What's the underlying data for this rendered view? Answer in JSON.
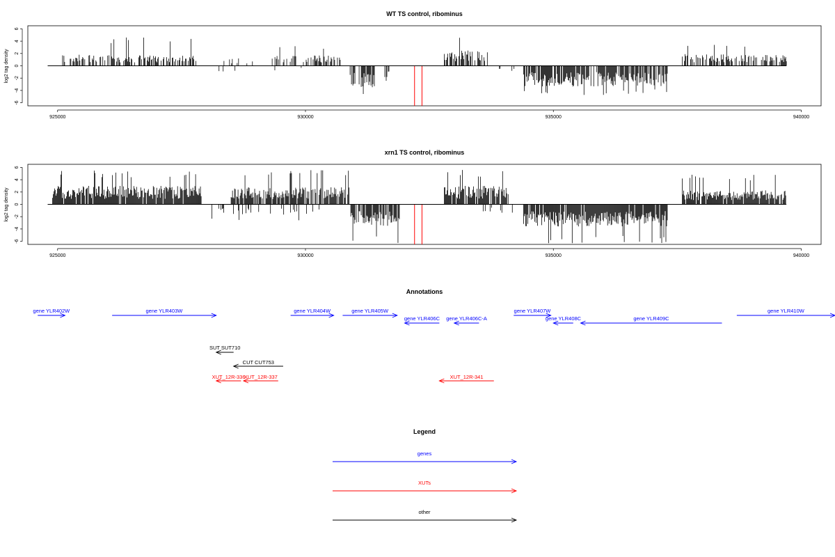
{
  "chart_data": [
    {
      "type": "bar",
      "title": "WT TS control, ribominus",
      "ylabel": "log2 tag density",
      "xlim": [
        924400,
        940400
      ],
      "ylim": [
        -6.5,
        6.5
      ],
      "xticks": [
        925000,
        930000,
        935000,
        940000
      ],
      "yticks": [
        6,
        4,
        2,
        0,
        -2,
        -4,
        -6
      ],
      "baseline_x": [
        924800,
        939700
      ],
      "segments": [
        {
          "x0": 925100,
          "x1": 927800,
          "sign": 1,
          "density": 0.45,
          "amp": 1.8,
          "spike": 4.6
        },
        {
          "x0": 928300,
          "x1": 929000,
          "sign": 1,
          "density": 0.12,
          "amp": 1.2,
          "spike": 2.8
        },
        {
          "x0": 928200,
          "x1": 928600,
          "sign": -1,
          "density": 0.12,
          "amp": 1.2,
          "spike": 2.4
        },
        {
          "x0": 929300,
          "x1": 930700,
          "sign": 1,
          "density": 0.35,
          "amp": 1.7,
          "spike": 3.3
        },
        {
          "x0": 929200,
          "x1": 930000,
          "sign": -1,
          "density": 0.06,
          "amp": 1.0,
          "spike": 2.2
        },
        {
          "x0": 930900,
          "x1": 931400,
          "sign": -1,
          "density": 0.85,
          "amp": 3.6,
          "spike": 5.0
        },
        {
          "x0": 931600,
          "x1": 931700,
          "sign": -1,
          "density": 0.6,
          "amp": 3.0,
          "spike": 3.6
        },
        {
          "x0": 932800,
          "x1": 933700,
          "sign": 1,
          "density": 0.55,
          "amp": 2.5,
          "spike": 4.6
        },
        {
          "x0": 933800,
          "x1": 934300,
          "sign": -1,
          "density": 0.08,
          "amp": 1.2,
          "spike": 2.4
        },
        {
          "x0": 934400,
          "x1": 937300,
          "sign": -1,
          "density": 0.75,
          "amp": 3.4,
          "spike": 4.8
        },
        {
          "x0": 937600,
          "x1": 939700,
          "sign": 1,
          "density": 0.6,
          "amp": 1.9,
          "spike": 3.8
        }
      ],
      "red_lines": [
        {
          "x": 932200,
          "y": -6.5
        },
        {
          "x": 932350,
          "y": -6.5
        }
      ]
    },
    {
      "type": "bar",
      "title": "xrn1 TS control, ribominus",
      "ylabel": "log2 tag density",
      "xlim": [
        924400,
        940400
      ],
      "ylim": [
        -6.5,
        6.5
      ],
      "xticks": [
        925000,
        930000,
        935000,
        940000
      ],
      "yticks": [
        6,
        4,
        2,
        0,
        -2,
        -4,
        -6
      ],
      "baseline_x": [
        924800,
        939700
      ],
      "segments": [
        {
          "x0": 924900,
          "x1": 927900,
          "sign": 1,
          "density": 0.9,
          "amp": 3.0,
          "spike": 5.5
        },
        {
          "x0": 928100,
          "x1": 928900,
          "sign": -1,
          "density": 0.25,
          "amp": 1.6,
          "spike": 2.8
        },
        {
          "x0": 928500,
          "x1": 930900,
          "sign": 1,
          "density": 0.8,
          "amp": 2.8,
          "spike": 5.9
        },
        {
          "x0": 929000,
          "x1": 930300,
          "sign": -1,
          "density": 0.15,
          "amp": 1.8,
          "spike": 3.0
        },
        {
          "x0": 930900,
          "x1": 931900,
          "sign": -1,
          "density": 0.8,
          "amp": 3.5,
          "spike": 6.4
        },
        {
          "x0": 932000,
          "x1": 932600,
          "sign": -1,
          "density": 0.1,
          "amp": 1.3,
          "spike": 2.0
        },
        {
          "x0": 932800,
          "x1": 934100,
          "sign": 1,
          "density": 0.85,
          "amp": 3.0,
          "spike": 5.6
        },
        {
          "x0": 933500,
          "x1": 934300,
          "sign": -1,
          "density": 0.12,
          "amp": 1.4,
          "spike": 2.4
        },
        {
          "x0": 934400,
          "x1": 937300,
          "sign": -1,
          "density": 0.95,
          "amp": 3.6,
          "spike": 6.4
        },
        {
          "x0": 937600,
          "x1": 939700,
          "sign": 1,
          "density": 0.9,
          "amp": 2.3,
          "spike": 4.8
        }
      ],
      "red_lines": [
        {
          "x": 932200,
          "y": -6.5
        },
        {
          "x": 932350,
          "y": -6.5
        }
      ]
    }
  ],
  "annotations": {
    "title": "Annotations",
    "xlim": [
      924400,
      940400
    ],
    "features": [
      {
        "label": "gene YLR402W",
        "x0": 924600,
        "x1": 925150,
        "row": 0,
        "strand": "+",
        "kind": "gene"
      },
      {
        "label": "gene YLR403W",
        "x0": 926100,
        "x1": 928200,
        "row": 0,
        "strand": "+",
        "kind": "gene"
      },
      {
        "label": "gene YLR404W",
        "x0": 929700,
        "x1": 930570,
        "row": 0,
        "strand": "+",
        "kind": "gene"
      },
      {
        "label": "gene YLR405W",
        "x0": 930750,
        "x1": 931850,
        "row": 0,
        "strand": "+",
        "kind": "gene"
      },
      {
        "label": "gene YLR406C",
        "x0": 932000,
        "x1": 932700,
        "row": 1,
        "strand": "-",
        "kind": "gene"
      },
      {
        "label": "gene YLR406C-A",
        "x0": 933000,
        "x1": 933500,
        "row": 1,
        "strand": "-",
        "kind": "gene"
      },
      {
        "label": "gene YLR407W",
        "x0": 934200,
        "x1": 934950,
        "row": 0,
        "strand": "+",
        "kind": "gene"
      },
      {
        "label": "gene YLR408C",
        "x0": 935000,
        "x1": 935400,
        "row": 1,
        "strand": "-",
        "kind": "gene"
      },
      {
        "label": "gene YLR409C",
        "x0": 935550,
        "x1": 938400,
        "row": 1,
        "strand": "-",
        "kind": "gene"
      },
      {
        "label": "gene YLR410W",
        "x0": 938700,
        "x1": 941600,
        "row": 0,
        "strand": "+",
        "kind": "gene"
      },
      {
        "label": "SUT SUT710",
        "x0": 928200,
        "x1": 928550,
        "row": 2,
        "strand": "-",
        "kind": "other"
      },
      {
        "label": "CUT CUT753",
        "x0": 928550,
        "x1": 929550,
        "row": 3,
        "strand": "-",
        "kind": "other"
      },
      {
        "label": "XUT_12R-336",
        "x0": 928200,
        "x1": 928700,
        "row": 4,
        "strand": "-",
        "kind": "xut"
      },
      {
        "label": "XUT_12R-337",
        "x0": 928750,
        "x1": 929450,
        "row": 4,
        "strand": "-",
        "kind": "xut"
      },
      {
        "label": "XUT_12R-341",
        "x0": 932700,
        "x1": 933800,
        "row": 4,
        "strand": "-",
        "kind": "xut"
      }
    ]
  },
  "legend": {
    "title": "Legend",
    "items": [
      {
        "label": "genes",
        "color": "#0000ff"
      },
      {
        "label": "XUTs",
        "color": "#ff0000"
      },
      {
        "label": "other",
        "color": "#000000"
      }
    ]
  },
  "colors": {
    "gene": "#0000ff",
    "xut": "#ff0000",
    "other": "#000000",
    "data": "#000000",
    "red": "#ff0000"
  }
}
